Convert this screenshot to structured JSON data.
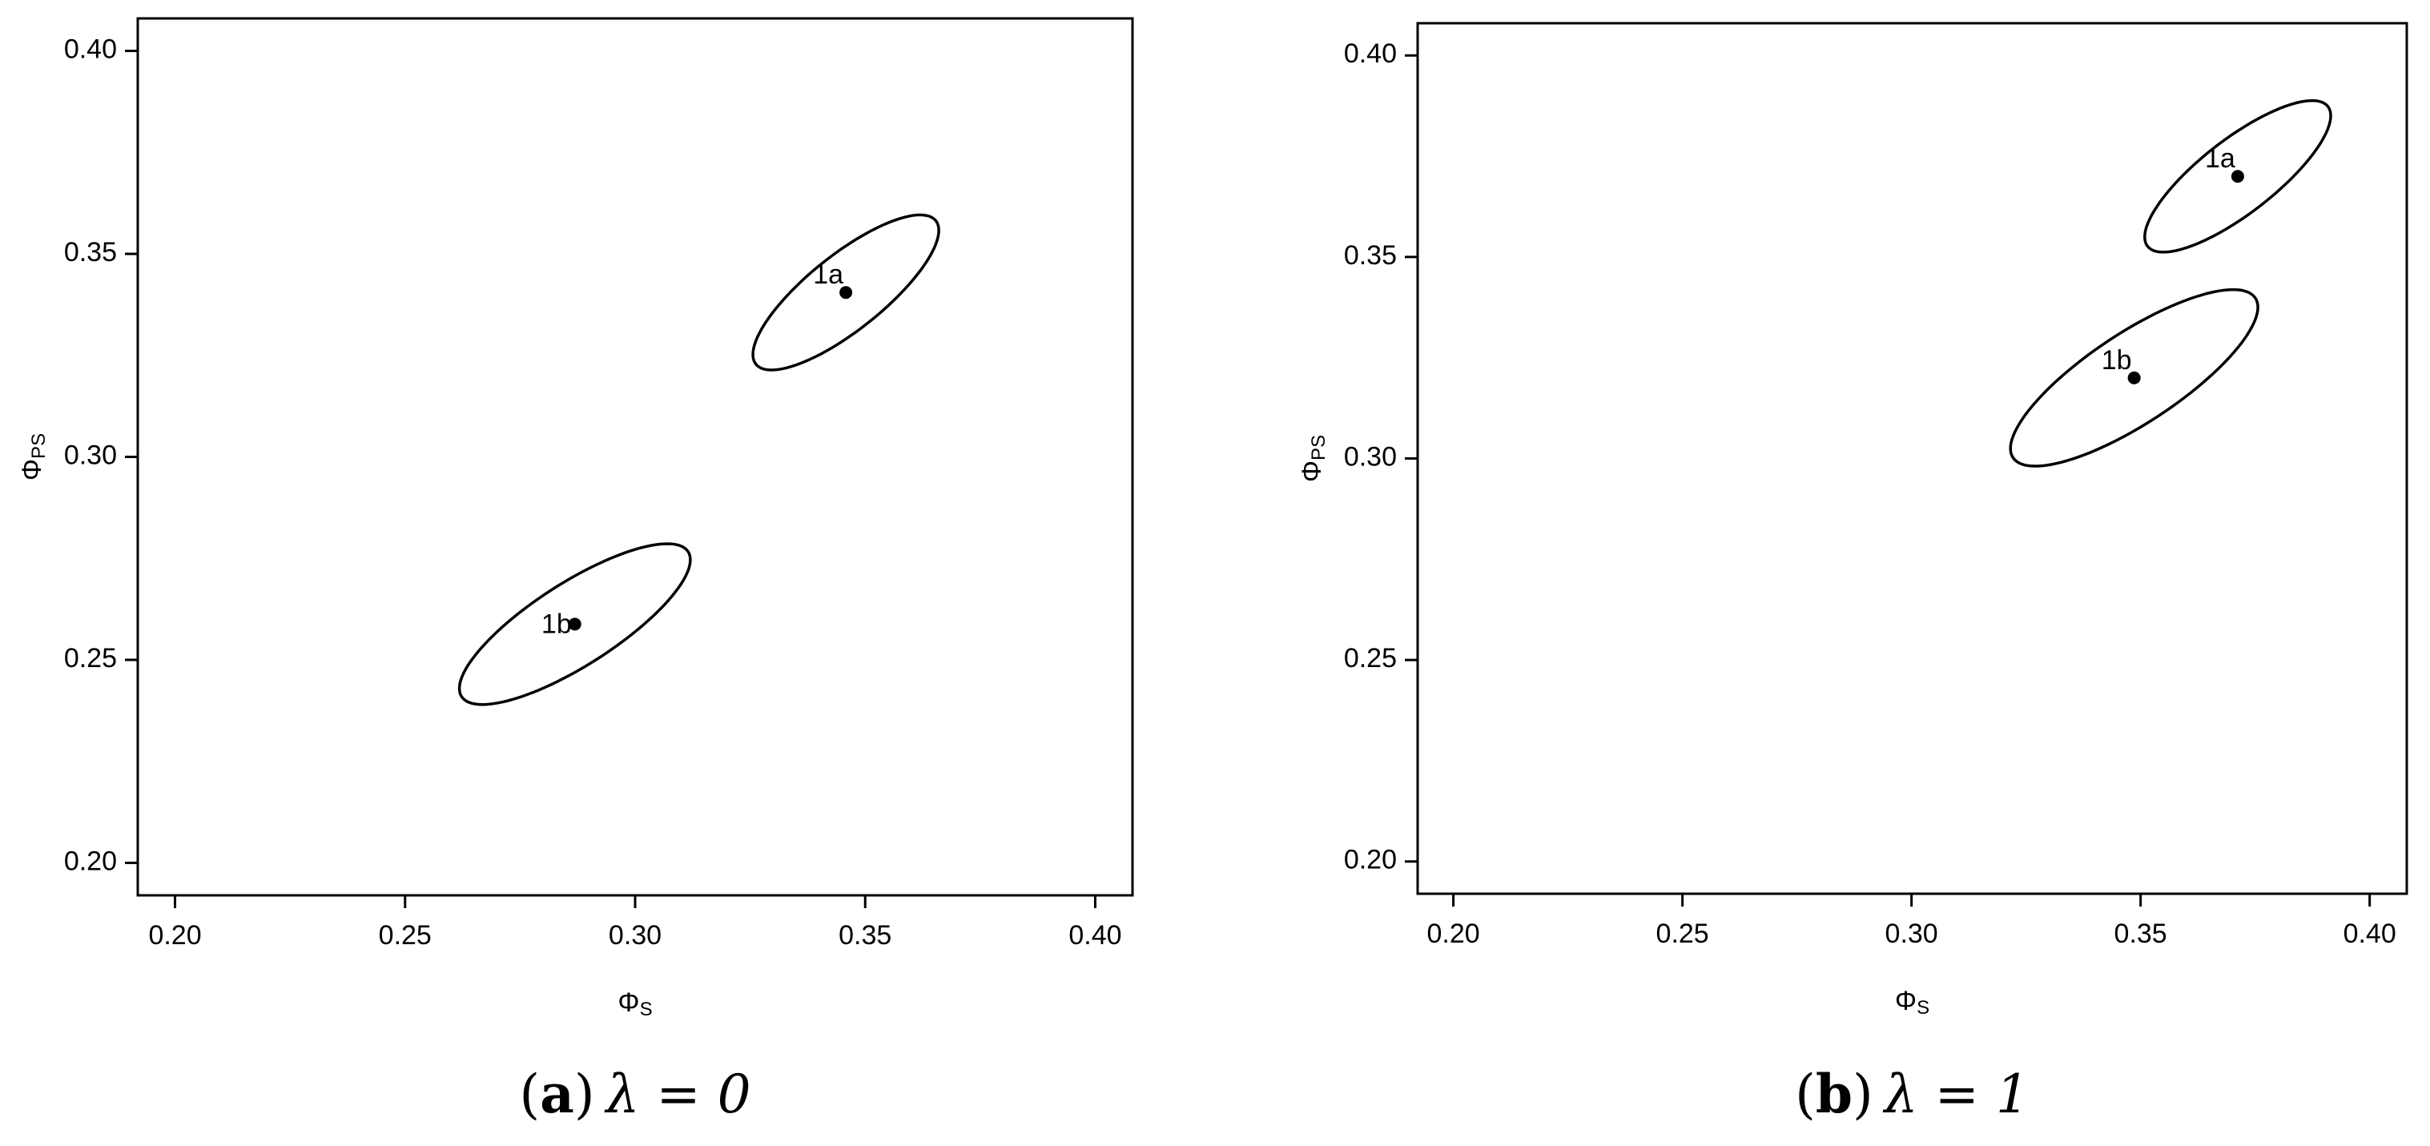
{
  "chart_data": [
    {
      "type": "scatter",
      "caption": {
        "open": "(",
        "tag": "a",
        "close": ")",
        "text": "λ = 0"
      },
      "xlabel": {
        "symbol": "Φ",
        "subscript": "S"
      },
      "ylabel": {
        "symbol": "Φ",
        "subscript": "PS"
      },
      "xlim": [
        0.1919,
        0.4081
      ],
      "ylim": [
        0.192,
        0.408
      ],
      "xticks": [
        {
          "value": 0.2,
          "label": "0.20"
        },
        {
          "value": 0.25,
          "label": "0.25"
        },
        {
          "value": 0.3,
          "label": "0.30"
        },
        {
          "value": 0.35,
          "label": "0.35"
        },
        {
          "value": 0.4,
          "label": "0.40"
        }
      ],
      "yticks": [
        {
          "value": 0.2,
          "label": "0.20"
        },
        {
          "value": 0.25,
          "label": "0.25"
        },
        {
          "value": 0.3,
          "label": "0.30"
        },
        {
          "value": 0.35,
          "label": "0.35"
        },
        {
          "value": 0.4,
          "label": "0.40"
        }
      ],
      "color": "#000000",
      "points": [
        {
          "label": "1a",
          "label_pos": "above",
          "x": 0.3458,
          "y": 0.3405,
          "ellipse": {
            "sx": 0.0202,
            "sy": 0.0191,
            "rho": 0.8
          }
        },
        {
          "label": "1b",
          "label_pos": "left",
          "x": 0.2869,
          "y": 0.2588,
          "ellipse": {
            "sx": 0.0251,
            "sy": 0.0198,
            "rho": 0.8
          }
        }
      ]
    },
    {
      "type": "scatter",
      "caption": {
        "open": "(",
        "tag": "b",
        "close": ")",
        "text": "λ = 1"
      },
      "xlabel": {
        "symbol": "Φ",
        "subscript": "S"
      },
      "ylabel": {
        "symbol": "Φ",
        "subscript": "PS"
      },
      "xlim": [
        0.1922,
        0.4081
      ],
      "ylim": [
        0.192,
        0.408
      ],
      "xticks": [
        {
          "value": 0.2,
          "label": "0.20"
        },
        {
          "value": 0.25,
          "label": "0.25"
        },
        {
          "value": 0.3,
          "label": "0.30"
        },
        {
          "value": 0.35,
          "label": "0.35"
        },
        {
          "value": 0.4,
          "label": "0.40"
        }
      ],
      "yticks": [
        {
          "value": 0.2,
          "label": "0.20"
        },
        {
          "value": 0.25,
          "label": "0.25"
        },
        {
          "value": 0.3,
          "label": "0.30"
        },
        {
          "value": 0.35,
          "label": "0.35"
        },
        {
          "value": 0.4,
          "label": "0.40"
        }
      ],
      "color": "#000000",
      "points": [
        {
          "label": "1a",
          "label_pos": "above",
          "x": 0.3712,
          "y": 0.37,
          "ellipse": {
            "sx": 0.0203,
            "sy": 0.0188,
            "rho": 0.8
          }
        },
        {
          "label": "1b",
          "label_pos": "above",
          "x": 0.3486,
          "y": 0.32,
          "ellipse": {
            "sx": 0.027,
            "sy": 0.0219,
            "rho": 0.8
          }
        }
      ]
    }
  ]
}
